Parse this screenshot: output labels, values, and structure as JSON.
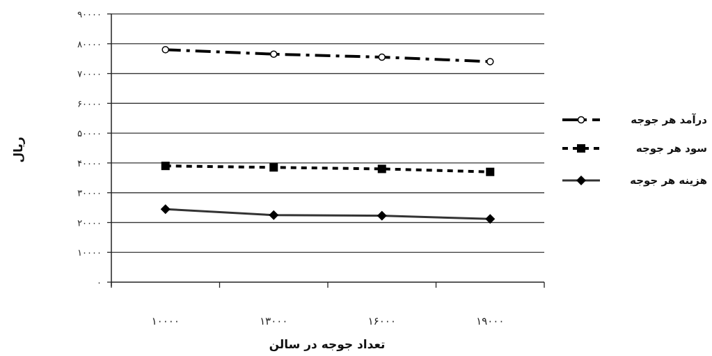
{
  "chart_data": {
    "type": "line",
    "categories": [
      "۱۰۰۰۰",
      "۱۳۰۰۰",
      "۱۶۰۰۰",
      "۱۹۰۰۰"
    ],
    "y_ticks": [
      "۰",
      "۱۰۰۰۰",
      "۲۰۰۰۰",
      "۳۰۰۰۰",
      "۴۰۰۰۰",
      "۵۰۰۰۰",
      "۶۰۰۰۰",
      "۷۰۰۰۰",
      "۸۰۰۰۰",
      "۹۰۰۰۰"
    ],
    "ylim": [
      0,
      90000
    ],
    "xlabel": "تعداد جوجه در سالن",
    "ylabel": "ریال",
    "grid": "horizontal",
    "legend_position": "right",
    "series": [
      {
        "name": "درآمد هر جوجه",
        "values": [
          78000,
          76500,
          75500,
          74000
        ],
        "marker": "circle-open",
        "line": "dash-dot",
        "color": "#000000"
      },
      {
        "name": "سود هر جوجه",
        "values": [
          39000,
          38500,
          38000,
          37000
        ],
        "marker": "square",
        "line": "dashed",
        "color": "#000000"
      },
      {
        "name": "هزینه هر جوجه",
        "values": [
          24500,
          22500,
          22300,
          21200
        ],
        "marker": "diamond",
        "line": "solid",
        "color": "#333333"
      }
    ]
  }
}
